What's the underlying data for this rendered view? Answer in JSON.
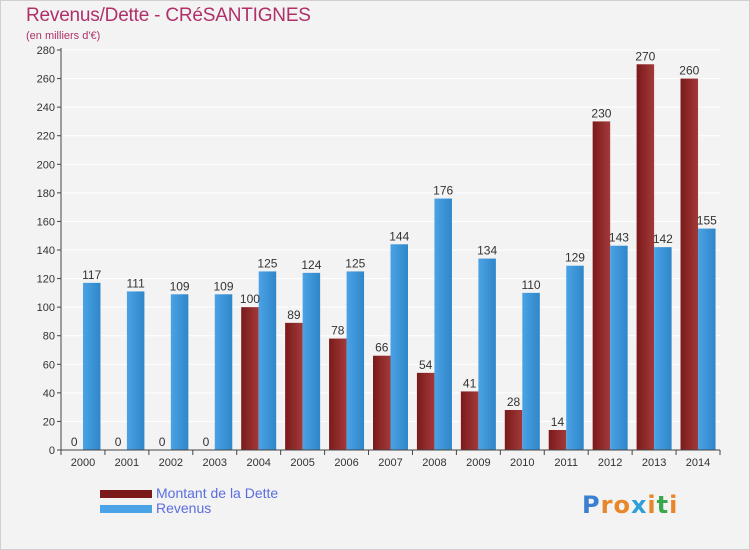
{
  "title": "Revenus/Dette - CRéSANTIGNES",
  "subtitle": "(en milliers d'€)",
  "logo": {
    "letters": [
      "P",
      "r",
      "o",
      "x",
      "i",
      "t",
      "i"
    ],
    "colors": [
      "#3a7fd0",
      "#e8862a",
      "#e8862a",
      "#2f9fd8",
      "#e8862a",
      "#3aa84a",
      "#e8862a"
    ]
  },
  "legend": [
    {
      "label": "Montant de la Dette",
      "color": "#7a1a1a"
    },
    {
      "label": "Revenus",
      "color": "#4aa3e6"
    }
  ],
  "colors": {
    "dette": "#7a1a1a",
    "dette_light": "#a33a3a",
    "revenus": "#4aa3e6",
    "revenus_dark": "#2f86c8",
    "axis": "#444444",
    "grid": "#ffffff"
  },
  "chart_data": {
    "type": "bar",
    "title": "Revenus/Dette - CRéSANTIGNES",
    "subtitle": "(en milliers d'€)",
    "categories": [
      "2000",
      "2001",
      "2002",
      "2003",
      "2004",
      "2005",
      "2006",
      "2007",
      "2008",
      "2009",
      "2010",
      "2011",
      "2012",
      "2013",
      "2014"
    ],
    "series": [
      {
        "name": "Montant de la Dette",
        "values": [
          0,
          0,
          0,
          0,
          100,
          89,
          78,
          66,
          54,
          41,
          28,
          14,
          230,
          270,
          260
        ]
      },
      {
        "name": "Revenus",
        "values": [
          117,
          111,
          109,
          109,
          125,
          124,
          125,
          144,
          176,
          134,
          110,
          129,
          143,
          142,
          155
        ]
      }
    ],
    "ylim": [
      0,
      280
    ],
    "yticks": [
      0,
      20,
      40,
      60,
      80,
      100,
      120,
      140,
      160,
      180,
      200,
      220,
      240,
      260,
      280
    ],
    "grid": true,
    "legend_position": "bottom-left"
  }
}
